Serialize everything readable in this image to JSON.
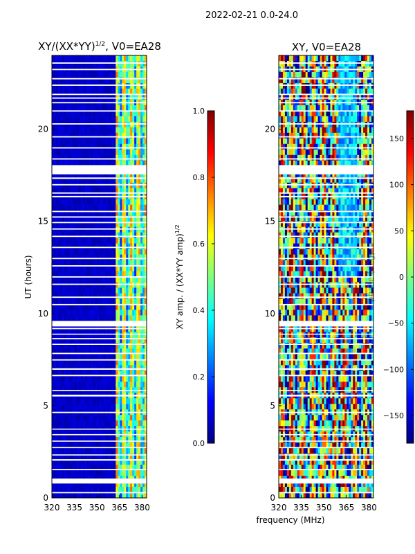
{
  "figure_title": "2022-02-21 0.0-24.0",
  "colors": {
    "flag_gaps": "#ffffff",
    "frame": "#000000",
    "jet": [
      "#00007f",
      "#0000ff",
      "#007fff",
      "#00ffff",
      "#7fff7f",
      "#ffff00",
      "#ff7f00",
      "#ff0000",
      "#7f0000"
    ]
  },
  "chart_data": [
    {
      "type": "heatmap",
      "name": "amplitude",
      "title_text": "XY/(XX*YY)",
      "title_superscript": "1/2",
      "title_suffix": ", V0=EA28",
      "xlabel": "",
      "ylabel": "UT (hours)",
      "xlim": [
        320,
        383
      ],
      "ylim": [
        0,
        24
      ],
      "x_ticks": [
        320,
        335,
        350,
        365,
        380
      ],
      "y_ticks": [
        0,
        5,
        10,
        15,
        20
      ],
      "flagged_channels_mhz": [
        320,
        362
      ],
      "active_channels_mhz": [
        362,
        383
      ],
      "colorbar": {
        "label_text": "XY amp. / (XX*YY amp)",
        "label_superscript": "1/2",
        "range": [
          0.0,
          1.0
        ],
        "ticks": [
          "0.0",
          "0.2",
          "0.4",
          "0.6",
          "0.8",
          "1.0"
        ]
      }
    },
    {
      "type": "heatmap",
      "name": "phase",
      "title_text": "XY, V0=EA28",
      "xlabel": "frequency (MHz)",
      "ylabel": "",
      "ylabel_overlay": "phase (deg)",
      "xlim": [
        320,
        383
      ],
      "ylim": [
        0,
        24
      ],
      "x_ticks": [
        320,
        335,
        350,
        365,
        380
      ],
      "y_ticks": [
        0,
        5,
        10,
        15,
        20
      ],
      "colorbar": {
        "range": [
          -180,
          180
        ],
        "ticks": [
          "−150",
          "−100",
          "−50",
          "0",
          "50",
          "100",
          "150"
        ]
      }
    }
  ],
  "flagged_time_ranges_hours": [
    [
      0.25,
      0.32
    ],
    [
      0.78,
      1.05
    ],
    [
      1.5,
      1.57
    ],
    [
      2.02,
      2.1
    ],
    [
      2.3,
      2.36
    ],
    [
      2.7,
      2.76
    ],
    [
      3.05,
      3.11
    ],
    [
      3.4,
      3.46
    ],
    [
      3.7,
      3.76
    ],
    [
      4.6,
      4.67
    ],
    [
      5.5,
      5.6
    ],
    [
      5.8,
      5.86
    ],
    [
      6.6,
      6.68
    ],
    [
      6.95,
      7.03
    ],
    [
      7.45,
      7.52
    ],
    [
      7.8,
      7.87
    ],
    [
      8.3,
      8.36
    ],
    [
      8.6,
      8.67
    ],
    [
      8.85,
      8.91
    ],
    [
      9.15,
      9.22
    ],
    [
      9.3,
      9.6
    ],
    [
      10.45,
      10.52
    ],
    [
      10.85,
      10.92
    ],
    [
      11.55,
      11.62
    ],
    [
      11.95,
      12.02
    ],
    [
      12.55,
      12.62
    ],
    [
      12.95,
      13.02
    ],
    [
      13.55,
      13.62
    ],
    [
      14.15,
      14.22
    ],
    [
      14.55,
      14.62
    ],
    [
      14.9,
      14.97
    ],
    [
      15.2,
      15.27
    ],
    [
      15.5,
      15.57
    ],
    [
      16.3,
      16.38
    ],
    [
      16.5,
      16.57
    ],
    [
      16.95,
      17.02
    ],
    [
      17.3,
      17.38
    ],
    [
      17.55,
      18.05
    ],
    [
      18.35,
      18.42
    ],
    [
      18.95,
      19.02
    ],
    [
      19.55,
      19.62
    ],
    [
      20.25,
      20.32
    ],
    [
      20.95,
      21.02
    ],
    [
      21.4,
      21.47
    ],
    [
      21.65,
      21.72
    ],
    [
      21.85,
      21.92
    ],
    [
      22.35,
      22.42
    ],
    [
      22.7,
      22.77
    ],
    [
      23.2,
      23.27
    ],
    [
      23.55,
      23.62
    ]
  ]
}
